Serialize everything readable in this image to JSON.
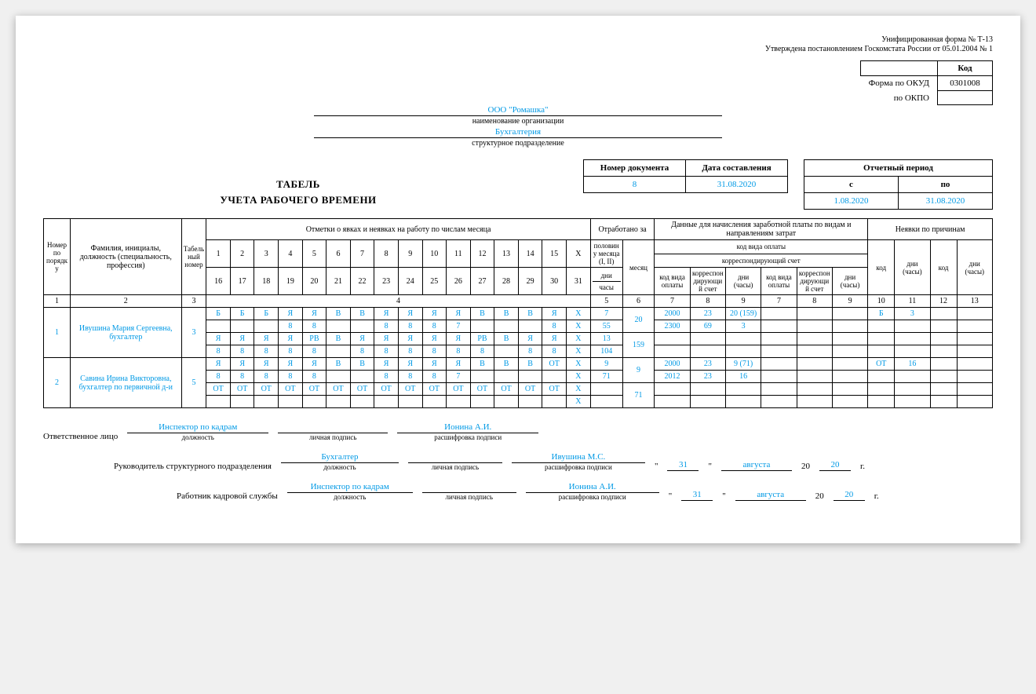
{
  "form": {
    "line1": "Унифицированная форма № Т-13",
    "line2": "Утверждена постановлением Госкомстата России от 05.01.2004 № 1"
  },
  "codes": {
    "header": "Код",
    "okud_label": "Форма по ОКУД",
    "okud": "0301008",
    "okpo_label": "по ОКПО",
    "okpo": ""
  },
  "org": {
    "name": "ООО \"Ромашка\"",
    "name_caption": "наименование организации",
    "dept": "Бухгалтерия",
    "dept_caption": "структурное подразделение"
  },
  "doc": {
    "num_label": "Номер документа",
    "date_label": "Дата составления",
    "num": "8",
    "date": "31.08.2020",
    "period_label": "Отчетный период",
    "from_label": "с",
    "to_label": "по",
    "from": "1.08.2020",
    "to": "31.08.2020"
  },
  "title1": "ТАБЕЛЬ",
  "title2": "УЧЕТА РАБОЧЕГО ВРЕМЕНИ",
  "headers": {
    "seq": "Номер по порядку",
    "fio": "Фамилия, инициалы, должность (специальность, профессия)",
    "tabno": "Табельный номер",
    "marks": "Отметки о явках и неявках на работу по числам месяца",
    "worked": "Отработано за",
    "half": "половину месяца (I, II)",
    "month": "месяц",
    "days": "дни",
    "hours": "часы",
    "payroll": "Данные для начисления заработной платы по видам и направлениям затрат",
    "paycode": "код вида оплаты",
    "corr": "корреспондирующий счет",
    "paycode_s": "код вида оплаты",
    "corr_s": "корреспондирующий счет",
    "dayhours": "дни (часы)",
    "absences": "Неявки по причинам",
    "code": "код",
    "dh": "дни (часы)"
  },
  "dayrow1": [
    "1",
    "2",
    "3",
    "4",
    "5",
    "6",
    "7",
    "8",
    "9",
    "10",
    "11",
    "12",
    "13",
    "14",
    "15",
    "X"
  ],
  "dayrow2": [
    "16",
    "17",
    "18",
    "19",
    "20",
    "21",
    "22",
    "23",
    "24",
    "25",
    "26",
    "27",
    "28",
    "29",
    "30",
    "31"
  ],
  "colnums": [
    "1",
    "2",
    "3",
    "4",
    "5",
    "6",
    "7",
    "8",
    "9",
    "7",
    "8",
    "9",
    "10",
    "11",
    "12",
    "13"
  ],
  "rows": [
    {
      "n": "1",
      "fio": "Ивушина Мария Сергеевна, бухгалтер",
      "tab": "3",
      "r1": [
        "Б",
        "Б",
        "Б",
        "Я",
        "Я",
        "В",
        "В",
        "Я",
        "Я",
        "Я",
        "Я",
        "В",
        "В",
        "В",
        "Я",
        "X"
      ],
      "r2": [
        "",
        "",
        "",
        "8",
        "8",
        "",
        "",
        "8",
        "8",
        "8",
        "7",
        "",
        "",
        "",
        "8",
        "X"
      ],
      "r3": [
        "Я",
        "Я",
        "Я",
        "Я",
        "РВ",
        "В",
        "Я",
        "Я",
        "Я",
        "Я",
        "Я",
        "РВ",
        "В",
        "Я",
        "Я",
        "X"
      ],
      "r4": [
        "8",
        "8",
        "8",
        "8",
        "8",
        "",
        "8",
        "8",
        "8",
        "8",
        "8",
        "8",
        "",
        "8",
        "8",
        "X"
      ],
      "half": [
        "7",
        "55",
        "13",
        "104"
      ],
      "month_days": "20",
      "month_hours": "159",
      "pay": [
        [
          "2000",
          "23",
          "20 (159)",
          "",
          "",
          ""
        ],
        [
          "2300",
          "69",
          "3",
          "",
          "",
          ""
        ],
        [
          "",
          "",
          "",
          "",
          "",
          ""
        ],
        [
          "",
          "",
          "",
          "",
          "",
          ""
        ]
      ],
      "abs": [
        [
          "Б",
          "3",
          "",
          ""
        ],
        [
          "",
          "",
          "",
          ""
        ],
        [
          "",
          "",
          "",
          ""
        ],
        [
          "",
          "",
          "",
          ""
        ]
      ]
    },
    {
      "n": "2",
      "fio": "Савина Ирина Викторовна, бухгалтер по первичной д-и",
      "tab": "5",
      "r1": [
        "Я",
        "Я",
        "Я",
        "Я",
        "Я",
        "В",
        "В",
        "Я",
        "Я",
        "Я",
        "Я",
        "В",
        "В",
        "В",
        "ОТ",
        "X"
      ],
      "r2": [
        "8",
        "8",
        "8",
        "8",
        "8",
        "",
        "",
        "8",
        "8",
        "8",
        "7",
        "",
        "",
        "",
        "",
        "X"
      ],
      "r3": [
        "ОТ",
        "ОТ",
        "ОТ",
        "ОТ",
        "ОТ",
        "ОТ",
        "ОТ",
        "ОТ",
        "ОТ",
        "ОТ",
        "ОТ",
        "ОТ",
        "ОТ",
        "ОТ",
        "ОТ",
        "X"
      ],
      "r4": [
        "",
        "",
        "",
        "",
        "",
        "",
        "",
        "",
        "",
        "",
        "",
        "",
        "",
        "",
        "",
        "X"
      ],
      "half": [
        "9",
        "71",
        "",
        ""
      ],
      "month_days": "9",
      "month_hours": "71",
      "pay": [
        [
          "2000",
          "23",
          "9 (71)",
          "",
          "",
          ""
        ],
        [
          "2012",
          "23",
          "16",
          "",
          "",
          ""
        ],
        [
          "",
          "",
          "",
          "",
          "",
          ""
        ],
        [
          "",
          "",
          "",
          "",
          "",
          ""
        ]
      ],
      "abs": [
        [
          "ОТ",
          "16",
          "",
          ""
        ],
        [
          "",
          "",
          "",
          ""
        ],
        [
          "",
          "",
          "",
          ""
        ],
        [
          "",
          "",
          "",
          ""
        ]
      ]
    }
  ],
  "sig": {
    "resp_label": "Ответственное лицо",
    "resp_pos": "Инспектор по кадрам",
    "resp_name": "Ионина А.И.",
    "pos_caption": "должность",
    "sign_caption": "личная подпись",
    "name_caption": "расшифровка подписи",
    "head_label": "Руководитель структурного подразделения",
    "head_pos": "Бухгалтер",
    "head_name": "Ивушина М.С.",
    "hr_label": "Работник кадровой службы",
    "hr_pos": "Инспектор по кадрам",
    "hr_name": "Ионина А.И.",
    "day": "31",
    "month": "августа",
    "yy": "20",
    "year_prefix": "20",
    "year_suffix": "г."
  }
}
